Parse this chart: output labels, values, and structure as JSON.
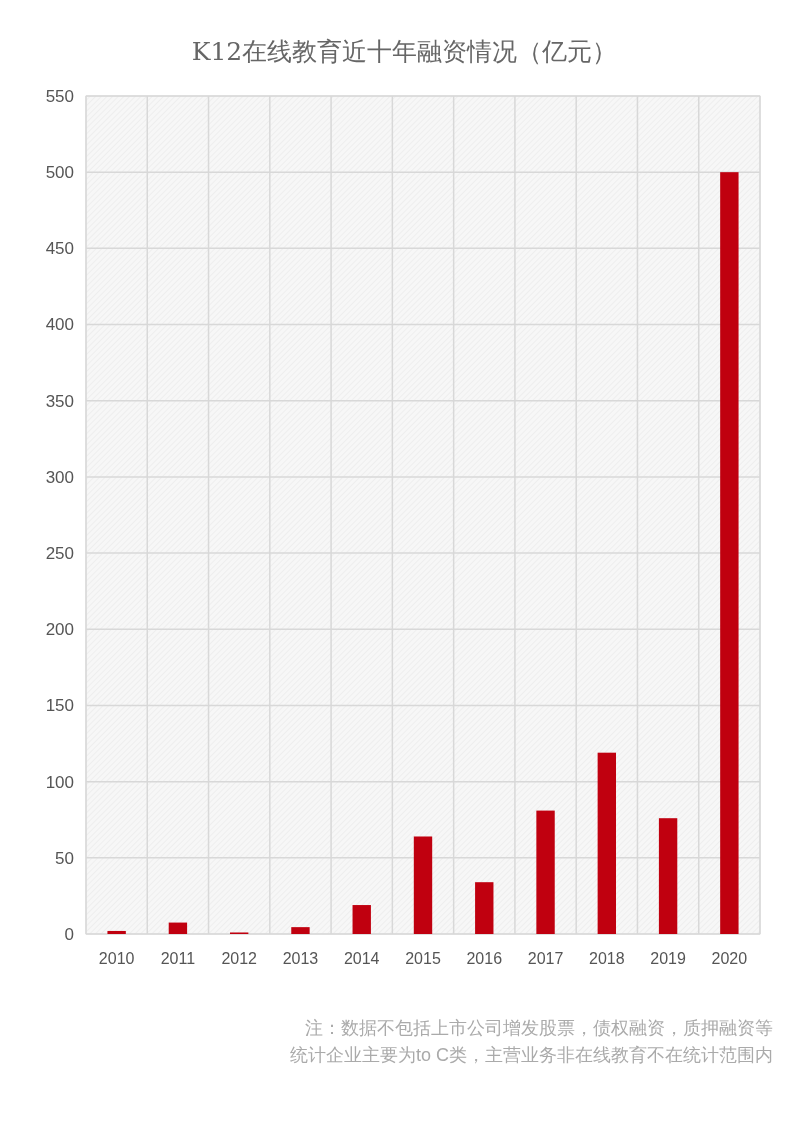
{
  "chart_data": {
    "type": "bar",
    "title": "K12在线教育近十年融资情况（亿元）",
    "categories": [
      "2010",
      "2011",
      "2012",
      "2013",
      "2014",
      "2015",
      "2016",
      "2017",
      "2018",
      "2019",
      "2020"
    ],
    "values": [
      2,
      7.5,
      1,
      4.5,
      19,
      64,
      34,
      81,
      119,
      76,
      500
    ],
    "color": "#c0000f",
    "ylim": [
      0,
      550
    ],
    "yticks": [
      0,
      50,
      100,
      150,
      200,
      250,
      300,
      350,
      400,
      450,
      500,
      550
    ],
    "grid": true,
    "annotations": [
      "注：数据不包括上市公司增发股票，债权融资，质押融资等",
      "统计企业主要为to C类，主营业务非在线教育不在统计范围内"
    ]
  }
}
